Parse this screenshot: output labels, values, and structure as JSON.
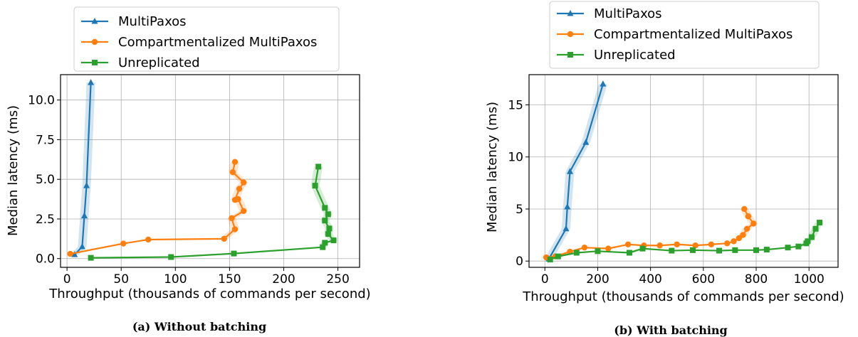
{
  "colors": {
    "multipaxos": "#1f77b4",
    "compartmentalized": "#ff7f0e",
    "unreplicated": "#2ca02c"
  },
  "chart_data": [
    {
      "type": "line",
      "caption": "(a) Without batching",
      "xlabel": "Throughput (thousands of commands per second)",
      "ylabel": "Median latency (ms)",
      "xlim": [
        -6,
        270
      ],
      "ylim": [
        -0.55,
        11.6
      ],
      "xticks": [
        0,
        50,
        100,
        150,
        200,
        250
      ],
      "yticks": [
        0.0,
        2.5,
        5.0,
        7.5,
        10.0
      ],
      "xtick_labels": [
        "0",
        "50",
        "100",
        "150",
        "200",
        "250"
      ],
      "ytick_labels": [
        "0.0",
        "2.5",
        "5.0",
        "7.5",
        "10.0"
      ],
      "grid": true,
      "legend_position": "above plot",
      "series": [
        {
          "name": "MultiPaxos",
          "marker": "triangle",
          "color": "multipaxos",
          "points": [
            [
              7,
              0.25
            ],
            [
              14,
              0.75
            ],
            [
              16,
              2.7
            ],
            [
              18,
              4.6
            ],
            [
              22,
              11.1
            ]
          ]
        },
        {
          "name": "Compartmentalized MultiPaxos",
          "marker": "circle",
          "color": "compartmentalized",
          "points": [
            [
              3,
              0.3
            ],
            [
              52,
              0.95
            ],
            [
              75,
              1.2
            ],
            [
              145,
              1.25
            ],
            [
              155,
              1.85
            ],
            [
              152,
              2.55
            ],
            [
              163,
              3.0
            ],
            [
              158,
              3.75
            ],
            [
              155,
              3.7
            ],
            [
              159,
              4.4
            ],
            [
              163,
              4.8
            ],
            [
              153,
              5.45
            ],
            [
              155,
              6.1
            ]
          ]
        },
        {
          "name": "Unreplicated",
          "marker": "square",
          "color": "unreplicated",
          "points": [
            [
              22,
              0.05
            ],
            [
              96,
              0.1
            ],
            [
              154,
              0.32
            ],
            [
              236,
              0.72
            ],
            [
              238,
              1.0
            ],
            [
              246,
              1.15
            ],
            [
              241,
              1.55
            ],
            [
              242,
              1.9
            ],
            [
              238,
              2.4
            ],
            [
              241,
              2.8
            ],
            [
              238,
              3.2
            ],
            [
              229,
              4.6
            ],
            [
              232,
              5.8
            ]
          ]
        }
      ]
    },
    {
      "type": "line",
      "caption": "(b) With batching",
      "xlabel": "Throughput (thousands of commands per second)",
      "ylabel": "Median latency (ms)",
      "xlim": [
        -60,
        1110
      ],
      "ylim": [
        -0.6,
        17.9
      ],
      "xticks": [
        0,
        200,
        400,
        600,
        800,
        1000
      ],
      "yticks": [
        0,
        5,
        10,
        15
      ],
      "xtick_labels": [
        "0",
        "200",
        "400",
        "600",
        "800",
        "1000"
      ],
      "ytick_labels": [
        "0",
        "5",
        "10",
        "15"
      ],
      "grid": true,
      "legend_position": "above plot",
      "series": [
        {
          "name": "MultiPaxos",
          "marker": "triangle",
          "color": "multipaxos",
          "points": [
            [
              15,
              0.2
            ],
            [
              80,
              3.1
            ],
            [
              85,
              5.2
            ],
            [
              95,
              8.6
            ],
            [
              155,
              11.4
            ],
            [
              220,
              17.0
            ]
          ]
        },
        {
          "name": "Compartmentalized MultiPaxos",
          "marker": "circle",
          "color": "compartmentalized",
          "points": [
            [
              5,
              0.35
            ],
            [
              40,
              0.45
            ],
            [
              95,
              0.9
            ],
            [
              150,
              1.3
            ],
            [
              240,
              1.2
            ],
            [
              315,
              1.6
            ],
            [
              375,
              1.5
            ],
            [
              435,
              1.5
            ],
            [
              500,
              1.6
            ],
            [
              570,
              1.5
            ],
            [
              630,
              1.6
            ],
            [
              690,
              1.7
            ],
            [
              715,
              1.9
            ],
            [
              735,
              2.2
            ],
            [
              750,
              2.5
            ],
            [
              765,
              3.1
            ],
            [
              790,
              3.6
            ],
            [
              770,
              4.3
            ],
            [
              755,
              5.0
            ]
          ]
        },
        {
          "name": "Unreplicated",
          "marker": "square",
          "color": "unreplicated",
          "points": [
            [
              20,
              0.15
            ],
            [
              50,
              0.45
            ],
            [
              120,
              0.8
            ],
            [
              200,
              0.95
            ],
            [
              320,
              0.8
            ],
            [
              370,
              1.2
            ],
            [
              480,
              1.0
            ],
            [
              560,
              1.05
            ],
            [
              660,
              1.0
            ],
            [
              720,
              1.05
            ],
            [
              800,
              1.05
            ],
            [
              840,
              1.1
            ],
            [
              920,
              1.3
            ],
            [
              960,
              1.4
            ],
            [
              990,
              1.7
            ],
            [
              995,
              1.9
            ],
            [
              1010,
              2.3
            ],
            [
              1025,
              3.1
            ],
            [
              1040,
              3.7
            ]
          ]
        }
      ]
    }
  ]
}
